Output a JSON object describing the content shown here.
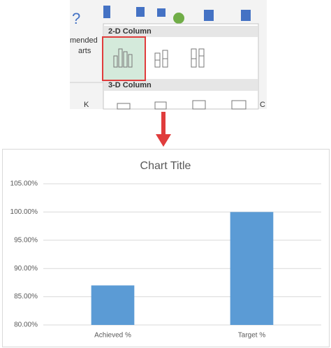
{
  "ribbon": {
    "left_label_top": "mended",
    "left_label_bottom": "arts",
    "section_2d": "2-D Column",
    "section_3d": "3-D Column",
    "column_letter_left": "K",
    "column_letter_right": "C"
  },
  "chart_data": {
    "type": "bar",
    "title": "Chart Title",
    "categories": [
      "Achieved %",
      "Target %"
    ],
    "values": [
      87,
      100
    ],
    "color": "#5b9bd5",
    "ylim": [
      80,
      105
    ],
    "yticks": [
      {
        "value": 80,
        "label": "80.00%"
      },
      {
        "value": 85,
        "label": "85.00%"
      },
      {
        "value": 90,
        "label": "90.00%"
      },
      {
        "value": 95,
        "label": "95.00%"
      },
      {
        "value": 100,
        "label": "100.00%"
      },
      {
        "value": 105,
        "label": "105.00%"
      }
    ],
    "grid": true
  }
}
